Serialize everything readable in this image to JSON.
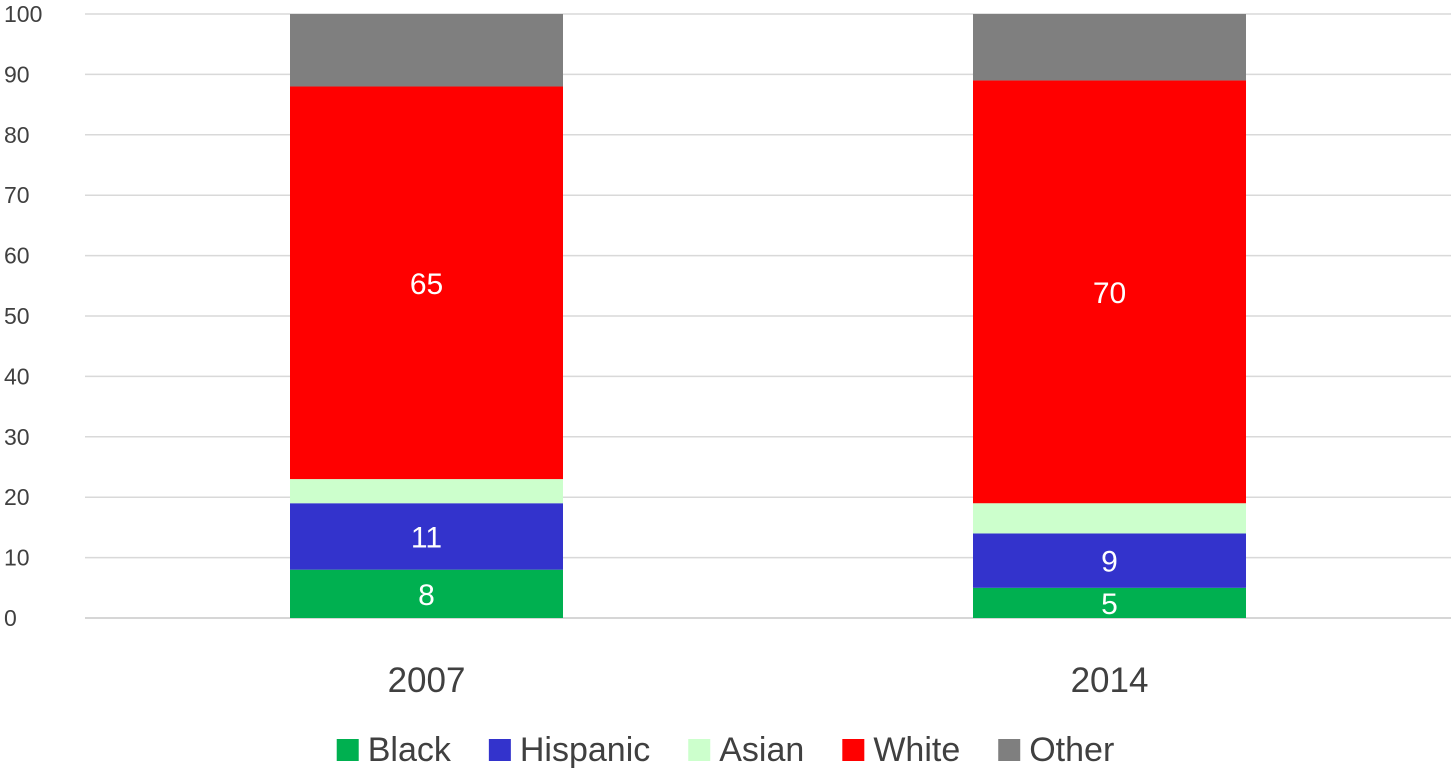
{
  "chart_data": {
    "type": "bar",
    "stacked": true,
    "categories": [
      "2007",
      "2014"
    ],
    "series": [
      {
        "name": "Black",
        "values": [
          8,
          5
        ],
        "color": "#00b050",
        "labels": [
          "8",
          "5"
        ]
      },
      {
        "name": "Hispanic",
        "values": [
          11,
          9
        ],
        "color": "#3333cc",
        "labels": [
          "11",
          "9"
        ]
      },
      {
        "name": "Asian",
        "values": [
          4,
          5
        ],
        "color": "#ccffcc",
        "labels": [
          "",
          ""
        ]
      },
      {
        "name": "White",
        "values": [
          65,
          70
        ],
        "color": "#ff0000",
        "labels": [
          "65",
          "70"
        ]
      },
      {
        "name": "Other",
        "values": [
          12,
          11
        ],
        "color": "#7f7f7f",
        "labels": [
          "",
          ""
        ]
      }
    ],
    "ylim": [
      0,
      100
    ],
    "yticks": [
      "0",
      "10",
      "20",
      "30",
      "40",
      "50",
      "60",
      "70",
      "80",
      "90",
      "100"
    ],
    "grid": true,
    "legend_position": "bottom"
  }
}
